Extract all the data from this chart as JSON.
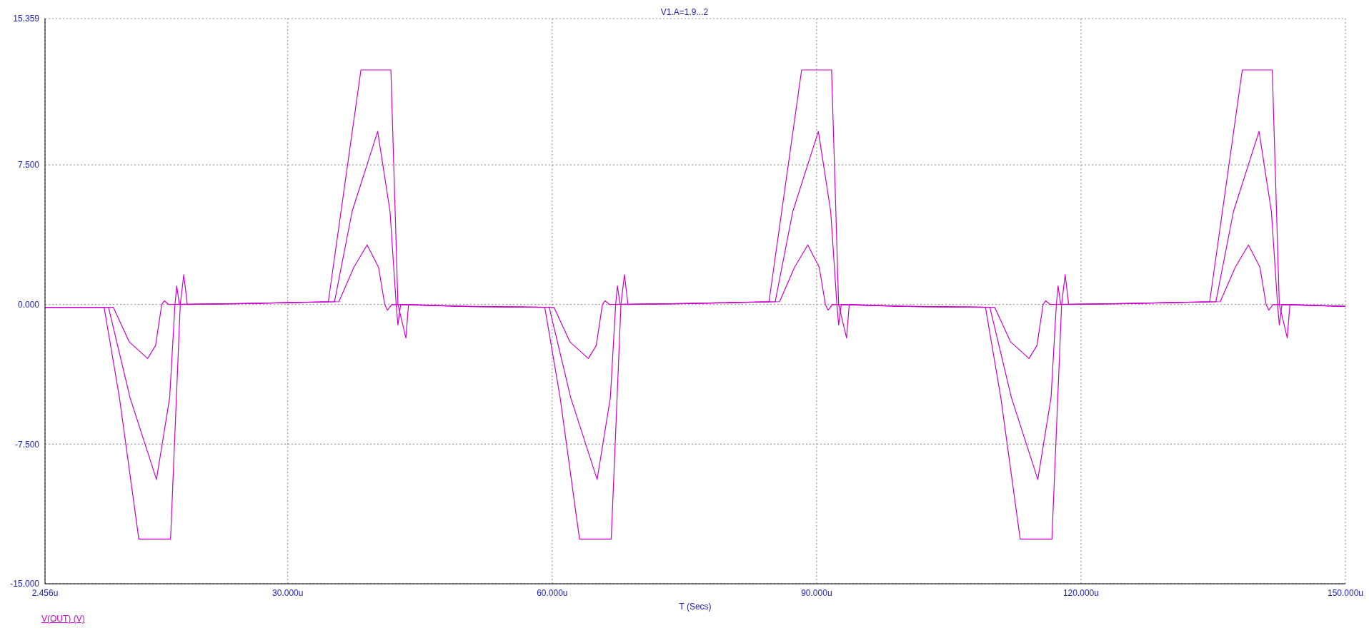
{
  "chart_data": {
    "type": "line",
    "title": "V1.A=1.9...2",
    "xlabel": "T (Secs)",
    "xlim": [
      2.456,
      150
    ],
    "xticks": [
      {
        "value": 2.456,
        "label": "2.456u"
      },
      {
        "value": 30,
        "label": "30.000u"
      },
      {
        "value": 60,
        "label": "60.000u"
      },
      {
        "value": 90,
        "label": "90.000u"
      },
      {
        "value": 120,
        "label": "120.000u"
      },
      {
        "value": 150,
        "label": "150.000u"
      }
    ],
    "ylim": [
      -15,
      15.359
    ],
    "yticks": [
      {
        "value": -15,
        "label": "-15.000"
      },
      {
        "value": -7.5,
        "label": "-7.500"
      },
      {
        "value": 0,
        "label": "0.000"
      },
      {
        "value": 7.5,
        "label": "7.500"
      },
      {
        "value": 15.359,
        "label": "15.359"
      }
    ],
    "grid": true,
    "legend": "bottom left",
    "marker": "none",
    "line_style": "solid",
    "series": [
      {
        "name": "V(OUT) (V)",
        "color": "#cc00cc",
        "x": [
          2.456,
          9.16,
          10.9,
          13.1,
          16.7,
          17.8,
          18.2,
          18.6,
          25,
          34.6,
          38.3,
          41.7,
          42.5,
          43.4,
          43.7,
          50,
          59.16,
          60.9,
          63.1,
          66.7,
          67.8,
          68.2,
          68.6,
          75,
          84.6,
          88.3,
          91.7,
          92.5,
          93.4,
          93.7,
          100,
          109.16,
          110.9,
          113.1,
          116.7,
          117.8,
          118.2,
          118.6,
          125,
          134.6,
          138.3,
          141.7,
          142.5,
          143.4,
          143.7,
          150
        ],
        "values": [
          -0.15,
          -0.15,
          -5,
          -12.6,
          -12.6,
          0,
          1.6,
          0,
          0.05,
          0.15,
          12.6,
          12.6,
          0,
          -1.8,
          0,
          -0.1,
          -0.15,
          -5,
          -12.6,
          -12.6,
          0,
          1.6,
          0,
          0.05,
          0.15,
          12.6,
          12.6,
          0,
          -1.8,
          0,
          -0.1,
          -0.15,
          -5,
          -12.6,
          -12.6,
          0,
          1.6,
          0,
          0.05,
          0.15,
          12.6,
          12.6,
          0,
          -1.8,
          0,
          -0.1
        ]
      },
      {
        "color": "#cc00cc",
        "x": [
          2.456,
          9.66,
          12.1,
          15.1,
          16.6,
          17.2,
          17.4,
          17.7,
          25,
          35.3,
          37.3,
          40.2,
          41.6,
          42.3,
          42.5,
          42.8,
          50,
          59.66,
          62.1,
          65.1,
          66.6,
          67.2,
          67.4,
          67.7,
          75,
          85.3,
          87.3,
          90.2,
          91.6,
          92.3,
          92.5,
          92.8,
          100,
          109.66,
          112.1,
          115.1,
          116.6,
          117.2,
          117.4,
          117.7,
          125,
          135.3,
          137.3,
          140.2,
          141.6,
          142.3,
          142.5,
          142.8,
          150
        ],
        "values": [
          -0.15,
          -0.15,
          -5,
          -9.4,
          -5,
          0,
          1,
          0,
          0.05,
          0.15,
          5,
          9.3,
          5,
          0,
          -1.1,
          0,
          -0.1,
          -0.15,
          -5,
          -9.4,
          -5,
          0,
          1,
          0,
          0.05,
          0.15,
          5,
          9.3,
          5,
          0,
          -1.1,
          0,
          -0.1,
          -0.15,
          -5,
          -9.4,
          -5,
          0,
          1,
          0,
          0.05,
          0.15,
          5,
          9.3,
          5,
          0,
          -1.1,
          0,
          -0.1
        ]
      },
      {
        "color": "#cc00cc",
        "x": [
          2.456,
          10.2,
          12,
          14.1,
          15,
          15.7,
          16,
          16.5,
          25,
          35.8,
          37.5,
          39,
          40.3,
          41,
          41.3,
          41.8,
          50,
          60.2,
          62,
          64.1,
          65,
          65.7,
          66,
          66.5,
          75,
          85.8,
          87.5,
          89,
          90.3,
          91,
          91.3,
          91.8,
          100,
          110.2,
          112,
          114.1,
          115,
          115.7,
          116,
          116.5,
          125,
          135.8,
          137.5,
          139,
          140.3,
          141,
          141.3,
          141.8,
          150
        ],
        "values": [
          -0.15,
          -0.15,
          -2,
          -2.9,
          -2.2,
          0,
          0.2,
          0,
          0.05,
          0.15,
          2,
          3.2,
          2,
          0,
          -0.3,
          0,
          -0.1,
          -0.15,
          -2,
          -2.9,
          -2.2,
          0,
          0.2,
          0,
          0.05,
          0.15,
          2,
          3.2,
          2,
          0,
          -0.3,
          0,
          -0.1,
          -0.15,
          -2,
          -2.9,
          -2.2,
          0,
          0.2,
          0,
          0.05,
          0.15,
          2,
          3.2,
          2,
          0,
          -0.3,
          0,
          -0.1
        ]
      }
    ]
  }
}
